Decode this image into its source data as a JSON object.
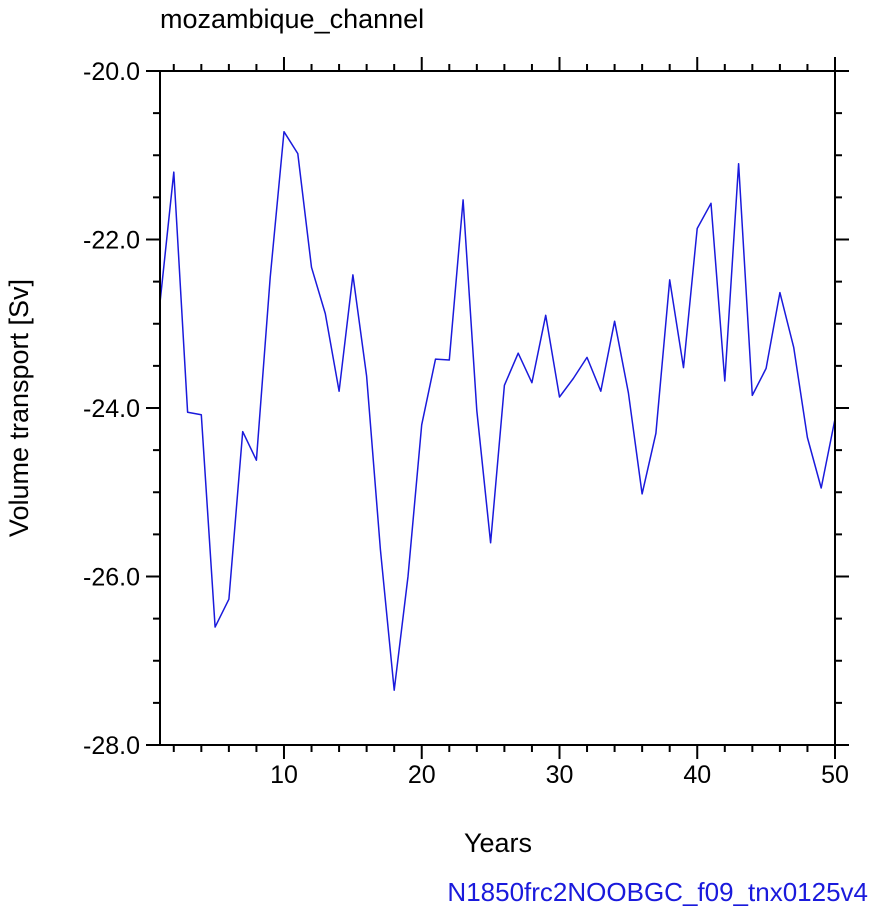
{
  "chart_data": {
    "type": "line",
    "title": "mozambique_channel",
    "xlabel": "Years",
    "ylabel": "Volume transport [Sv]",
    "footer": "N1850frc2NOOBGC_f09_tnx0125v4",
    "xlim": [
      1,
      50
    ],
    "ylim": [
      -28,
      -20
    ],
    "xticks": [
      10,
      20,
      30,
      40,
      50
    ],
    "xtick_labels": [
      "10",
      "20",
      "30",
      "40",
      "50"
    ],
    "yticks": [
      -20,
      -22,
      -24,
      -26,
      -28
    ],
    "ytick_labels": [
      "-20.0",
      "-22.0",
      "-24.0",
      "-26.0",
      "-28.0"
    ],
    "grid": false,
    "colors": {
      "line": "#1a1adc",
      "footer": "#1a1adc",
      "axes": "#000000"
    },
    "series": [
      {
        "x": [
          1,
          2,
          3,
          4,
          5,
          6,
          7,
          8,
          9,
          10,
          11,
          12,
          13,
          14,
          15,
          16,
          17,
          18,
          19,
          20,
          21,
          22,
          23,
          24,
          25,
          26,
          27,
          28,
          29,
          30,
          31,
          32,
          33,
          34,
          35,
          36,
          37,
          38,
          39,
          40,
          41,
          42,
          43,
          44,
          45,
          46,
          47,
          48,
          49,
          50
        ],
        "values": [
          -22.75,
          -21.2,
          -24.05,
          -24.08,
          -26.6,
          -26.27,
          -24.28,
          -24.62,
          -22.45,
          -20.72,
          -20.98,
          -22.33,
          -22.88,
          -23.8,
          -22.42,
          -23.62,
          -25.68,
          -27.35,
          -26.0,
          -24.2,
          -23.42,
          -23.43,
          -21.53,
          -24.03,
          -25.6,
          -23.73,
          -23.35,
          -23.7,
          -22.9,
          -23.87,
          -23.65,
          -23.4,
          -23.8,
          -22.97,
          -23.82,
          -25.02,
          -24.3,
          -22.48,
          -23.52,
          -21.87,
          -21.57,
          -23.68,
          -21.1,
          -23.85,
          -23.53,
          -22.63,
          -23.28,
          -24.35,
          -24.95,
          -24.13
        ]
      }
    ]
  }
}
